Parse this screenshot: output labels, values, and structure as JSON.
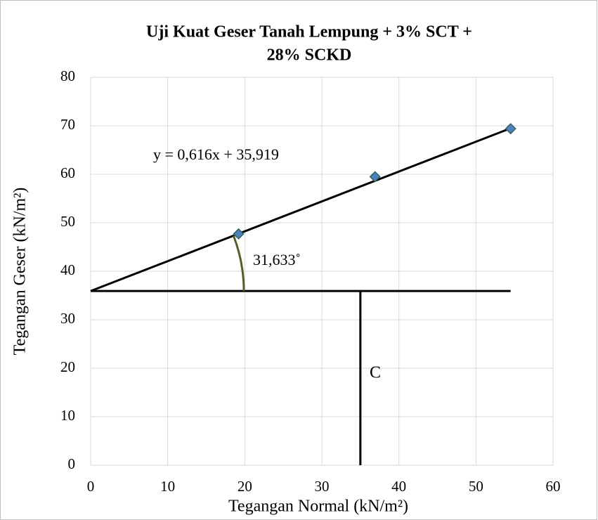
{
  "chart_data": {
    "type": "scatter",
    "title": [
      "Uji Kuat Geser Tanah Lempung + 3% SCT +",
      "28% SCKD"
    ],
    "x_label": "Tegangan Normal (kN/m²)",
    "y_label": "Tegangan Geser (kN/m²)",
    "x": [
      19.2,
      36.9,
      54.5
    ],
    "values": [
      47.7,
      59.5,
      69.4
    ],
    "color": "#4f81bd",
    "xlim": [
      0,
      60
    ],
    "xticks": [
      0,
      10,
      20,
      30,
      40,
      50,
      60
    ],
    "ylim": [
      0,
      80
    ],
    "yticks": [
      0,
      10,
      20,
      30,
      40,
      50,
      60,
      70,
      80
    ],
    "grid": true,
    "trendline": {
      "label": "y = 0,616x + 35,919",
      "slope": 0.616,
      "intercept": 35.919
    },
    "angle_label": "31,633˚",
    "c_marker": {
      "label": "C",
      "x": 35
    }
  }
}
